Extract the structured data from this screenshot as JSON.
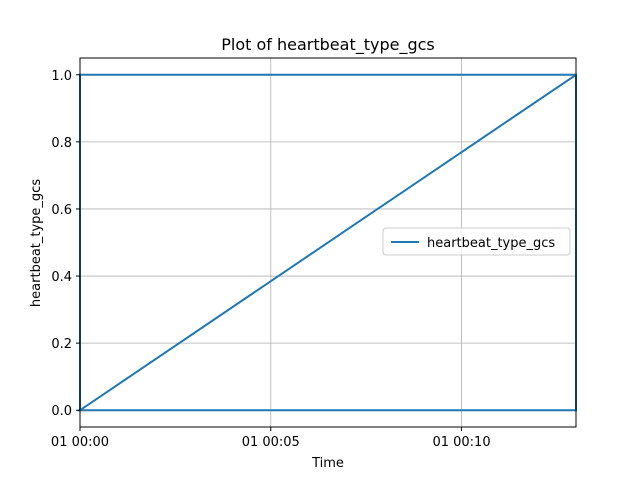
{
  "chart_data": {
    "type": "line",
    "title": "Plot of heartbeat_type_gcs",
    "xlabel": "Time",
    "ylabel": "heartbeat_type_gcs",
    "x_unit": "minutes",
    "xlim": [
      0,
      13
    ],
    "ylim": [
      -0.05,
      1.05
    ],
    "x_ticks": [
      {
        "value": 0,
        "label": "01 00:00"
      },
      {
        "value": 5,
        "label": "01 00:05"
      },
      {
        "value": 10,
        "label": "01 00:10"
      }
    ],
    "y_ticks": [
      {
        "value": 0,
        "label": "0.0"
      },
      {
        "value": 0.2,
        "label": "0.2"
      },
      {
        "value": 0.4,
        "label": "0.4"
      },
      {
        "value": 0.6,
        "label": "0.6"
      },
      {
        "value": 0.8,
        "label": "0.8"
      },
      {
        "value": 1.0,
        "label": "1.0"
      }
    ],
    "grid": true,
    "legend_position": "center-right",
    "series": [
      {
        "name": "heartbeat_type_gcs",
        "color": "#1f77b4",
        "x": [
          0,
          0,
          13,
          13,
          0,
          13
        ],
        "y": [
          0,
          1,
          1,
          0,
          0,
          1
        ]
      }
    ]
  }
}
